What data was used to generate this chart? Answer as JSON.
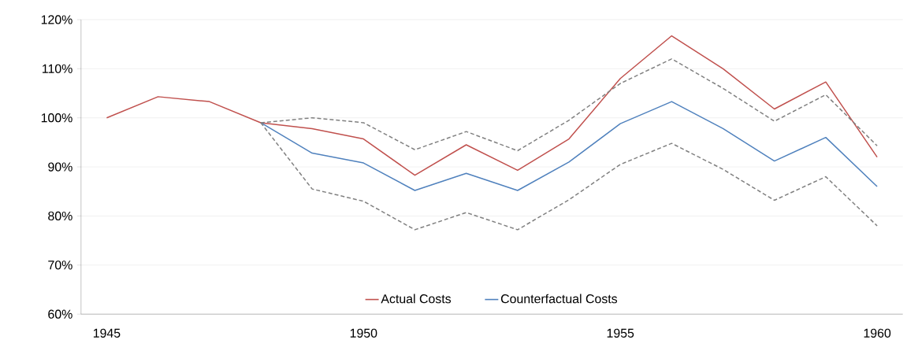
{
  "chart_data": {
    "type": "line",
    "categories": [
      "1945",
      null,
      null,
      null,
      null,
      "1950",
      null,
      null,
      null,
      null,
      "1955",
      null,
      null,
      null,
      null,
      "1960"
    ],
    "series": [
      {
        "name": "Actual Costs",
        "color": "#c0504d",
        "values": [
          100,
          104.3,
          103.3,
          99,
          97.8,
          95.7,
          88.3,
          94.5,
          89.3,
          95.7,
          108,
          116.7,
          110,
          101.8,
          107.3,
          92
        ]
      },
      {
        "name": "Counterfactual Costs",
        "color": "#4f81bd",
        "values": [
          null,
          null,
          null,
          99,
          92.8,
          90.8,
          85.2,
          88.7,
          85.2,
          91,
          98.8,
          103.3,
          97.8,
          91.2,
          96,
          86
        ]
      },
      {
        "color": "#808080",
        "line_style": "dashed",
        "values": [
          null,
          null,
          null,
          99,
          100,
          99,
          93.5,
          97.2,
          93.3,
          99.5,
          107,
          112,
          106,
          99.3,
          104.7,
          94.3
        ]
      },
      {
        "color": "#808080",
        "line_style": "dashed",
        "values": [
          null,
          null,
          null,
          99,
          85.5,
          83,
          77.2,
          80.7,
          77.2,
          83.3,
          90.5,
          94.8,
          89.5,
          83.2,
          88,
          78
        ]
      }
    ],
    "ylim": [
      60,
      120
    ],
    "yticks": [
      {
        "value": 60,
        "label": "60%"
      },
      {
        "value": 70,
        "label": "70%"
      },
      {
        "value": 80,
        "label": "80%"
      },
      {
        "value": 90,
        "label": "90%"
      },
      {
        "value": 100,
        "label": "100%"
      },
      {
        "value": 110,
        "label": "110%"
      },
      {
        "value": 120,
        "label": "120%"
      }
    ],
    "grid": "y",
    "legend": "bottom",
    "marker": "none",
    "line_style": "solid"
  }
}
